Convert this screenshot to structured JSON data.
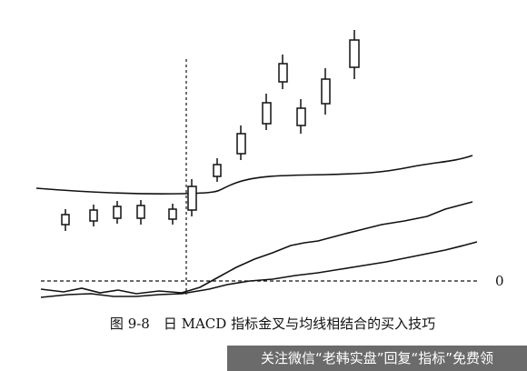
{
  "zero_label": "0",
  "caption": "图 9-8　日 MACD 指标金叉与均线相结合的买入技巧",
  "watermark": "关注微信“老韩实盘”回复“指标”免费领"
}
